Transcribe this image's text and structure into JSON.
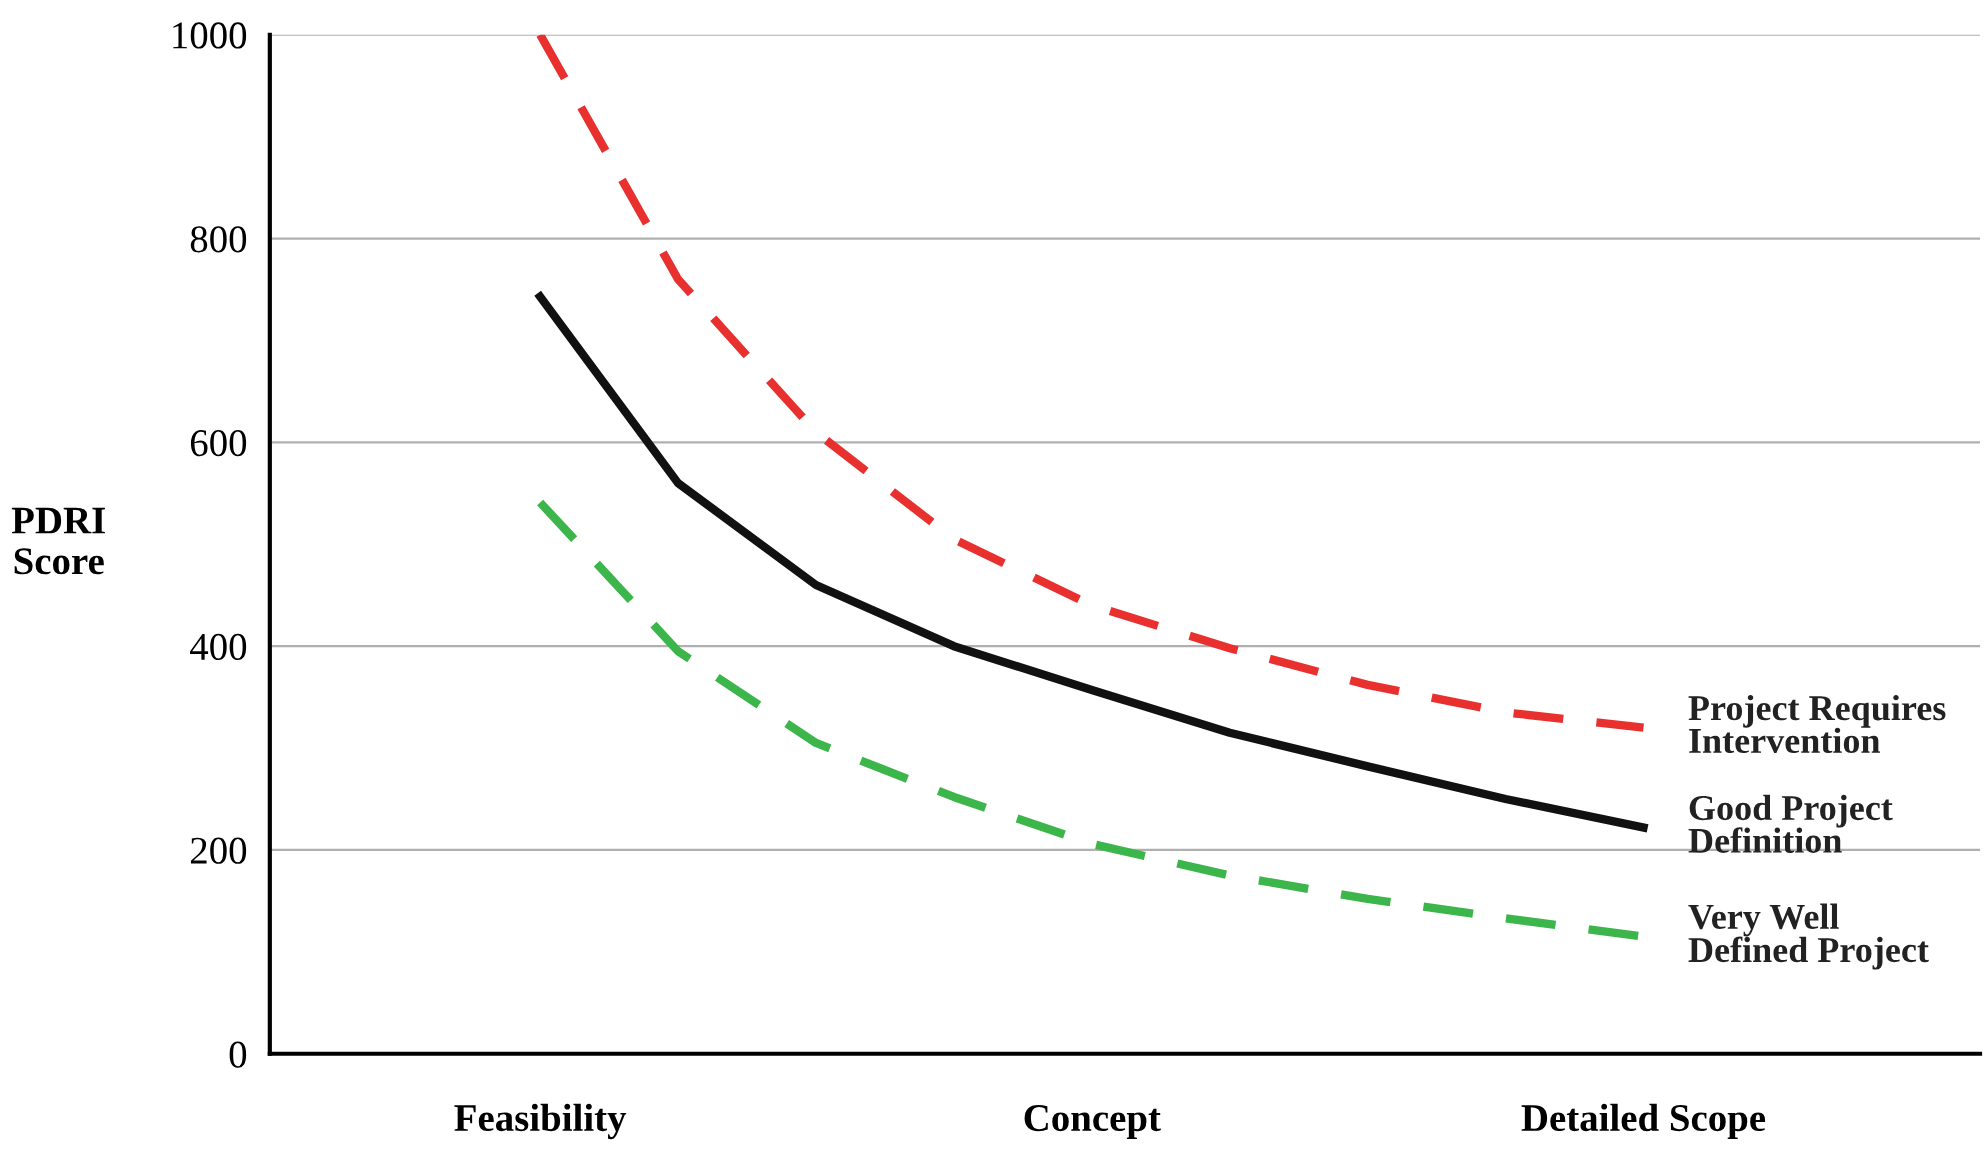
{
  "chart_data": {
    "type": "line",
    "ylabel": "PDRI\nScore",
    "categories": [
      "Feasibility",
      null,
      null,
      null,
      "Concept",
      null,
      null,
      null,
      "Detailed Scope"
    ],
    "ylim": [
      0,
      1000
    ],
    "yticks": [
      0,
      200,
      400,
      600,
      800,
      1000
    ],
    "grid": "y",
    "legend": false,
    "marker": "none",
    "series": [
      {
        "name": "Project Requires\nIntervention",
        "color": "#e8312f",
        "line_style": "dashed",
        "values": [
          1000,
          760,
          610,
          505,
          440,
          398,
          362,
          335,
          320
        ]
      },
      {
        "name": "Good Project\nDefinition",
        "color": "#111111",
        "line_style": "solid",
        "values": [
          743,
          560,
          460,
          400,
          357,
          315,
          282,
          250,
          222
        ]
      },
      {
        "name": "Very Well\nDefined Project",
        "color": "#3cb54a",
        "line_style": "dashed",
        "values": [
          541,
          395,
          305,
          252,
          206,
          175,
          152,
          133,
          115
        ]
      }
    ]
  }
}
